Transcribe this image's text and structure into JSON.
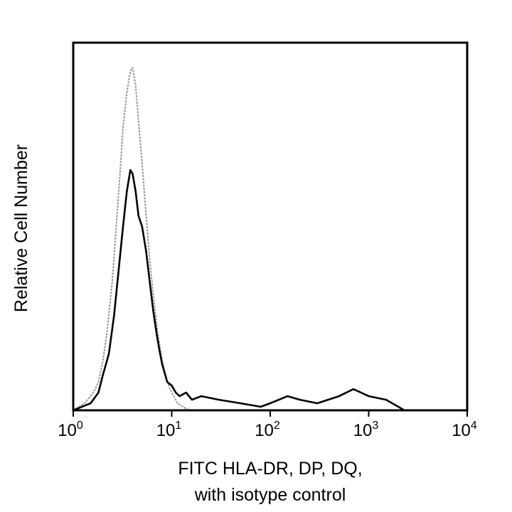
{
  "chart_data": {
    "type": "line",
    "xlabel": [
      "FITC HLA-DR, DP, DQ,",
      "with isotype control"
    ],
    "ylabel": "Relative Cell Number",
    "x_scale": "log10",
    "xlim": [
      1,
      10000
    ],
    "ylim": [
      0,
      1
    ],
    "x_ticks": [
      {
        "base": "10",
        "exp": "0",
        "value": 1
      },
      {
        "base": "10",
        "exp": "1",
        "value": 10
      },
      {
        "base": "10",
        "exp": "2",
        "value": 100
      },
      {
        "base": "10",
        "exp": "3",
        "value": 1000
      },
      {
        "base": "10",
        "exp": "4",
        "value": 10000
      }
    ],
    "grid": false,
    "series": [
      {
        "color": "#999999",
        "style": "isotype",
        "x": [
          1.0,
          1.3,
          1.6,
          1.8,
          2.0,
          2.2,
          2.5,
          2.8,
          3.0,
          3.2,
          3.5,
          3.8,
          4.0,
          4.3,
          4.6,
          5.0,
          5.5,
          6.0,
          6.6,
          7.2,
          8.0,
          9.0,
          10.0,
          11.5,
          13.0,
          15.0
        ],
        "y": [
          0.0,
          0.02,
          0.05,
          0.08,
          0.14,
          0.22,
          0.37,
          0.56,
          0.68,
          0.8,
          0.9,
          0.96,
          0.97,
          0.92,
          0.82,
          0.7,
          0.55,
          0.42,
          0.31,
          0.22,
          0.14,
          0.08,
          0.05,
          0.02,
          0.01,
          0.0
        ]
      },
      {
        "color": "#000000",
        "style": "sample",
        "x": [
          1.0,
          1.5,
          1.8,
          2.0,
          2.3,
          2.6,
          2.9,
          3.2,
          3.5,
          3.8,
          4.0,
          4.3,
          4.6,
          5.0,
          5.5,
          6.0,
          6.5,
          7.0,
          7.5,
          8.0,
          9.0,
          10.0,
          11.0,
          12.0,
          14.0,
          16.0,
          20.0,
          30.0,
          50.0,
          80.0,
          100.0,
          150.0,
          200.0,
          300.0,
          500.0,
          700.0,
          1000.0,
          1500.0,
          2000.0,
          2300.0
        ],
        "y": [
          0.0,
          0.02,
          0.05,
          0.1,
          0.16,
          0.27,
          0.4,
          0.52,
          0.62,
          0.68,
          0.67,
          0.62,
          0.55,
          0.52,
          0.45,
          0.36,
          0.28,
          0.22,
          0.17,
          0.13,
          0.08,
          0.07,
          0.05,
          0.04,
          0.05,
          0.03,
          0.04,
          0.03,
          0.02,
          0.01,
          0.02,
          0.04,
          0.03,
          0.02,
          0.04,
          0.06,
          0.04,
          0.03,
          0.01,
          0.0
        ]
      }
    ]
  }
}
